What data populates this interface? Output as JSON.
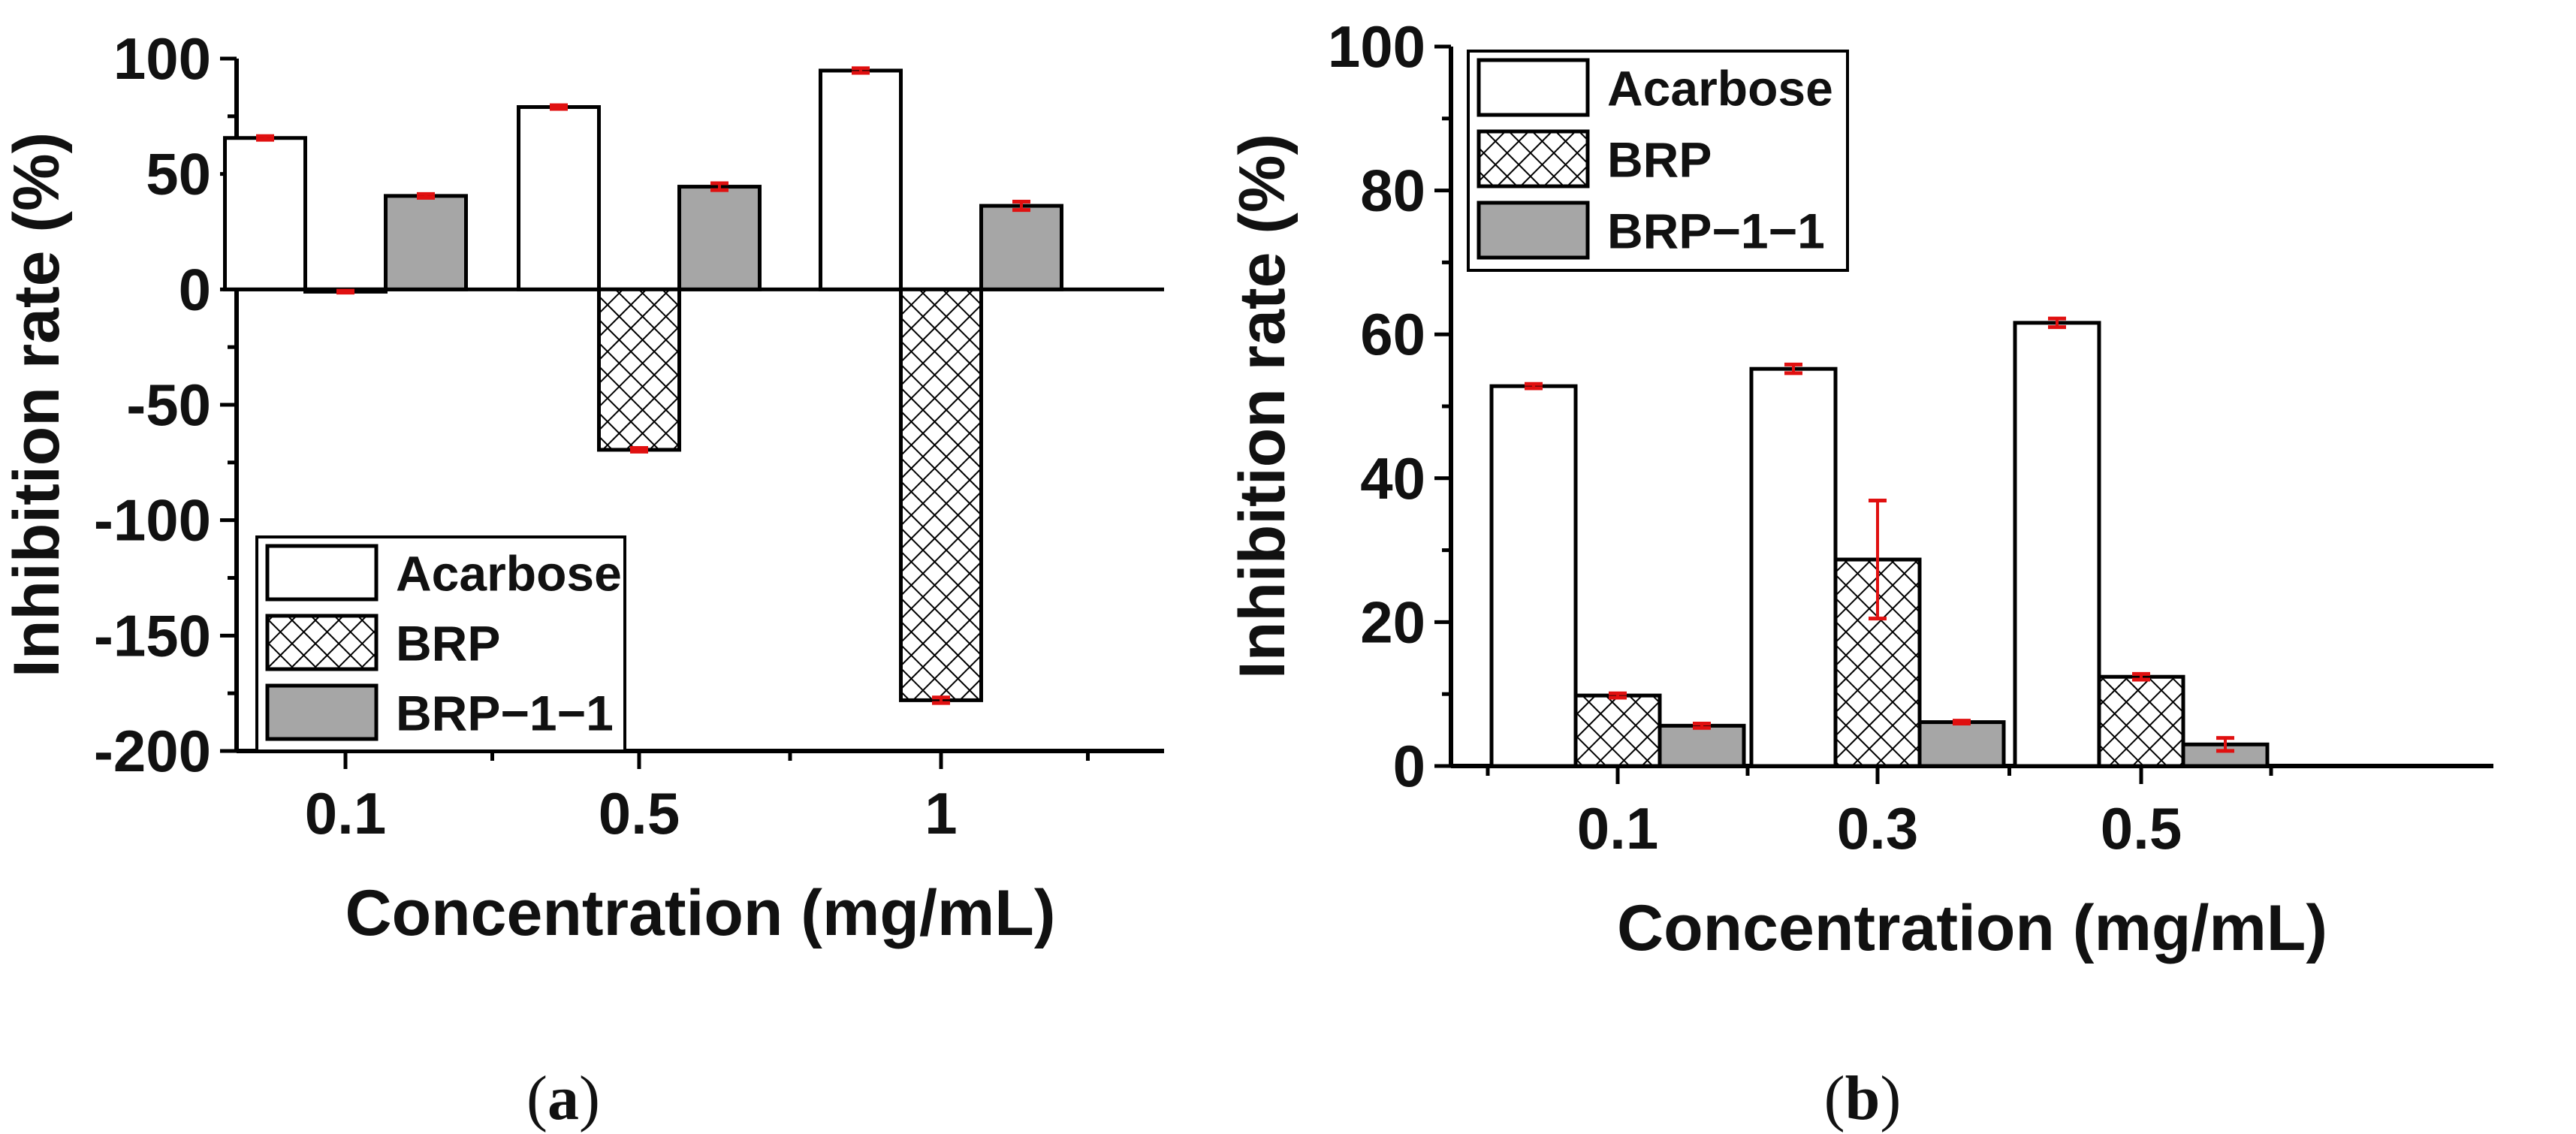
{
  "colors": {
    "acarbose_fill": "#ffffff",
    "brp_hatch": "#000000",
    "brp_fill": "#ffffff",
    "brp11_fill": "#a6a6a6",
    "outline": "#000000",
    "error_bar": "#e01010"
  },
  "chart_data": [
    {
      "type": "bar",
      "panel": "a",
      "caption_letter": "a",
      "categories": [
        "0.1",
        "0.5",
        "1"
      ],
      "series": [
        {
          "name": "Acarbose",
          "values": [
            65.6,
            79.0,
            94.8
          ],
          "errors": [
            0.8,
            0.8,
            1.0
          ],
          "style": "white"
        },
        {
          "name": "BRP",
          "values": [
            -1.0,
            -69.5,
            -178.0
          ],
          "errors": [
            0.4,
            0.8,
            1.2
          ],
          "style": "hatch"
        },
        {
          "name": "BRP−1−1",
          "values": [
            40.5,
            44.5,
            36.2
          ],
          "errors": [
            0.8,
            1.5,
            1.8
          ],
          "style": "gray"
        }
      ],
      "xlabel": "Concentration (mg/mL)",
      "ylabel": "Inhibition rate (%)",
      "ylim": [
        -200,
        100
      ],
      "yticks": [
        100,
        50,
        0,
        -50,
        -100,
        -150,
        -200
      ],
      "legend": {
        "position": "bottom-left",
        "entries": [
          "Acarbose",
          "BRP",
          "BRP−1−1"
        ]
      }
    },
    {
      "type": "bar",
      "panel": "b",
      "caption_letter": "b",
      "categories": [
        "0.1",
        "0.3",
        "0.5"
      ],
      "series": [
        {
          "name": "Acarbose",
          "values": [
            52.8,
            55.2,
            61.6
          ],
          "errors": [
            0.3,
            0.6,
            0.6
          ],
          "style": "white"
        },
        {
          "name": "BRP",
          "values": [
            9.8,
            28.7,
            12.4
          ],
          "errors": [
            0.3,
            8.2,
            0.4
          ],
          "style": "hatch"
        },
        {
          "name": "BRP−1−1",
          "values": [
            5.6,
            6.1,
            3.0
          ],
          "errors": [
            0.3,
            0.2,
            0.9
          ],
          "style": "gray"
        }
      ],
      "xlabel": "Concentration (mg/mL)",
      "ylabel": "Inhibition rate (%)",
      "ylim": [
        0,
        100
      ],
      "yticks": [
        100,
        80,
        60,
        40,
        20,
        0
      ],
      "legend": {
        "position": "top-left",
        "entries": [
          "Acarbose",
          "BRP",
          "BRP−1−1"
        ]
      }
    }
  ],
  "captions": {
    "a": {
      "open": "(",
      "letter": "a",
      "close": ")"
    },
    "b": {
      "open": "(",
      "letter": "b",
      "close": ")"
    }
  }
}
